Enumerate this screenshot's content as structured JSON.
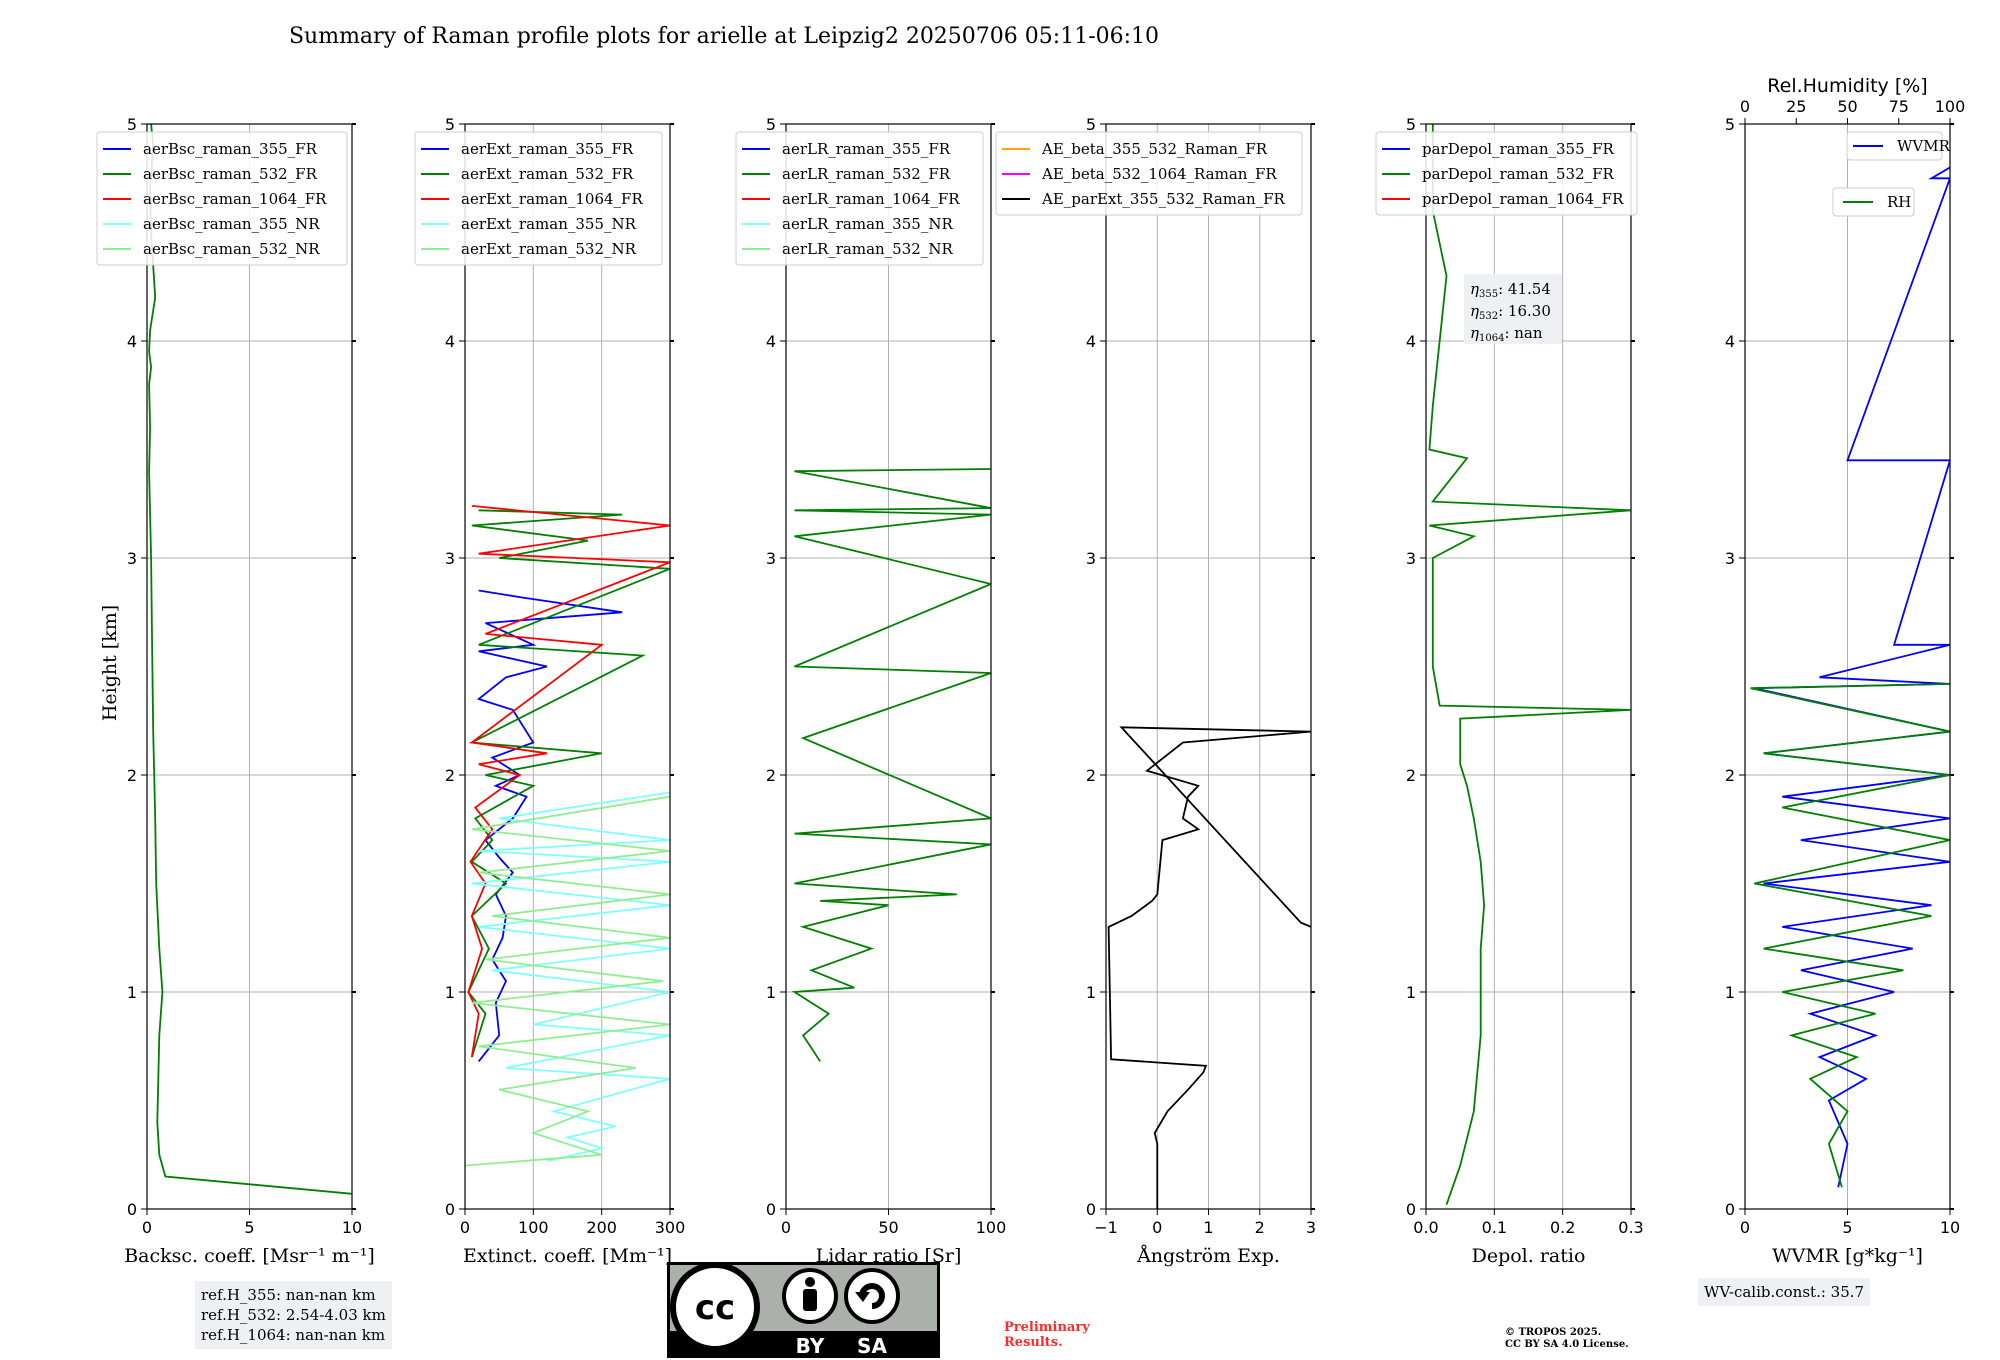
{
  "title": "Summary of Raman profile plots for arielle at Leipzig2 20250706 05:11-06:10",
  "colors": {
    "blue": "#0000ff",
    "green": "#008000",
    "red": "#ff0000",
    "cyan": "#7fffff",
    "lightgreen": "#90ee90",
    "orange": "#ffa500",
    "magenta": "#ff00ff",
    "black": "#000000"
  },
  "chart_data": [
    {
      "type": "line",
      "ylabel": "Height [km]",
      "xlabel": "Backsc. coeff. [Msr⁻¹ m⁻¹]",
      "xlim": [
        0,
        10
      ],
      "ylim": [
        0,
        5
      ],
      "xticks": [
        "0",
        "5",
        "10"
      ],
      "yticks": [
        "0",
        "1",
        "2",
        "3",
        "4",
        "5"
      ],
      "grid": true,
      "legend": "upper-left",
      "series": [
        {
          "name": "aerBsc_raman_355_FR",
          "color": "#0000ff",
          "x": [],
          "y": []
        },
        {
          "name": "aerBsc_raman_532_FR",
          "color": "#008000",
          "x": [
            10,
            0.9,
            0.6,
            0.5,
            0.6,
            0.75,
            0.6,
            0.45,
            0.4,
            0.3,
            0.25,
            0.2,
            0.1,
            0.15,
            0.1,
            0.2,
            0.1,
            0.15,
            0.4,
            0.2,
            0.15,
            0.3,
            0.2
          ],
          "y": [
            0.07,
            0.15,
            0.25,
            0.4,
            0.8,
            1.0,
            1.2,
            1.5,
            1.8,
            2.2,
            2.6,
            3.0,
            3.4,
            3.6,
            3.8,
            3.88,
            3.95,
            4.05,
            4.2,
            4.5,
            4.7,
            4.9,
            5.0
          ]
        },
        {
          "name": "aerBsc_raman_1064_FR",
          "color": "#ff0000",
          "x": [],
          "y": []
        },
        {
          "name": "aerBsc_raman_355_NR",
          "color": "#7fffff",
          "x": [],
          "y": []
        },
        {
          "name": "aerBsc_raman_532_NR",
          "color": "#90ee90",
          "x": [],
          "y": []
        }
      ]
    },
    {
      "type": "line",
      "xlabel": "Extinct. coeff. [Mm⁻¹]",
      "xlim": [
        0,
        300
      ],
      "ylim": [
        0,
        5
      ],
      "xticks": [
        "0",
        "100",
        "200",
        "300"
      ],
      "yticks": [
        "0",
        "1",
        "2",
        "3",
        "4",
        "5"
      ],
      "grid": true,
      "legend": "upper-left",
      "series": [
        {
          "name": "aerExt_raman_355_FR",
          "color": "#0000ff",
          "x": [
            20,
            50,
            45,
            60,
            40,
            55,
            60,
            45,
            70,
            50,
            30,
            70,
            90,
            45,
            80,
            40,
            100,
            70,
            20,
            60,
            120,
            20,
            100,
            30,
            230,
            80,
            20
          ],
          "y": [
            0.68,
            0.8,
            0.95,
            1.05,
            1.15,
            1.25,
            1.35,
            1.45,
            1.55,
            1.62,
            1.7,
            1.8,
            1.9,
            1.95,
            2.0,
            2.08,
            2.15,
            2.3,
            2.35,
            2.45,
            2.5,
            2.57,
            2.6,
            2.7,
            2.75,
            2.82,
            2.85
          ]
        },
        {
          "name": "aerExt_raman_532_FR",
          "color": "#008000",
          "x": [
            10,
            30,
            5,
            35,
            10,
            60,
            10,
            40,
            15,
            100,
            30,
            200,
            10,
            260,
            20,
            300,
            50,
            180,
            10,
            230,
            20
          ],
          "y": [
            0.7,
            0.9,
            1.0,
            1.2,
            1.35,
            1.5,
            1.6,
            1.7,
            1.8,
            1.95,
            2.0,
            2.1,
            2.15,
            2.55,
            2.6,
            2.95,
            3.0,
            3.08,
            3.15,
            3.2,
            3.22
          ]
        },
        {
          "name": "aerExt_raman_1064_FR",
          "color": "#ff0000",
          "x": [
            10,
            20,
            5,
            25,
            10,
            30,
            8,
            40,
            15,
            80,
            20,
            120,
            10,
            200,
            30,
            300,
            20,
            300,
            10
          ],
          "y": [
            0.7,
            0.9,
            1.0,
            1.2,
            1.35,
            1.5,
            1.6,
            1.75,
            1.85,
            2.0,
            2.05,
            2.1,
            2.15,
            2.6,
            2.65,
            2.98,
            3.02,
            3.15,
            3.24
          ]
        },
        {
          "name": "aerExt_raman_355_NR",
          "color": "#7fffff",
          "x": [
            120,
            200,
            150,
            220,
            130,
            300,
            60,
            300,
            100,
            300,
            40,
            300,
            20,
            300,
            10,
            300,
            20,
            300,
            50,
            300
          ],
          "y": [
            0.22,
            0.28,
            0.33,
            0.38,
            0.45,
            0.6,
            0.65,
            0.8,
            0.85,
            1.0,
            1.1,
            1.2,
            1.3,
            1.4,
            1.5,
            1.6,
            1.65,
            1.7,
            1.8,
            1.92
          ]
        },
        {
          "name": "aerExt_raman_532_NR",
          "color": "#90ee90",
          "x": [
            0,
            200,
            100,
            180,
            50,
            250,
            20,
            300,
            10,
            290,
            30,
            300,
            40,
            300,
            20,
            300,
            10,
            300
          ],
          "y": [
            0.2,
            0.25,
            0.35,
            0.45,
            0.55,
            0.65,
            0.75,
            0.85,
            0.95,
            1.05,
            1.15,
            1.25,
            1.35,
            1.45,
            1.55,
            1.65,
            1.75,
            1.9
          ]
        }
      ]
    },
    {
      "type": "line",
      "xlabel": "Lidar ratio [Sr]",
      "xlim": [
        0,
        120
      ],
      "ylim": [
        0,
        5
      ],
      "xticks": [
        "0",
        "50",
        "100"
      ],
      "yticks": [
        "0",
        "1",
        "2",
        "3",
        "4",
        "5"
      ],
      "grid": true,
      "legend": "upper-left",
      "series": [
        {
          "name": "aerLR_raman_355_FR",
          "color": "#0000ff",
          "x": [],
          "y": []
        },
        {
          "name": "aerLR_raman_532_FR",
          "color": "#008000",
          "x": [
            20,
            10,
            25,
            5,
            40,
            15,
            50,
            10,
            60,
            20,
            100,
            5,
            120,
            5,
            120,
            10,
            120,
            5,
            120,
            5,
            120,
            5,
            120,
            5,
            120
          ],
          "y": [
            0.68,
            0.8,
            0.9,
            1.0,
            1.02,
            1.1,
            1.2,
            1.3,
            1.4,
            1.42,
            1.45,
            1.5,
            1.68,
            1.73,
            1.8,
            2.17,
            2.47,
            2.5,
            2.88,
            3.1,
            3.2,
            3.22,
            3.23,
            3.4,
            3.41
          ]
        },
        {
          "name": "aerLR_raman_1064_FR",
          "color": "#ff0000",
          "x": [],
          "y": []
        },
        {
          "name": "aerLR_raman_355_NR",
          "color": "#7fffff",
          "x": [],
          "y": []
        },
        {
          "name": "aerLR_raman_532_NR",
          "color": "#90ee90",
          "x": [],
          "y": []
        }
      ]
    },
    {
      "type": "line",
      "xlabel": "Ångström Exp.",
      "xlim": [
        -1,
        3
      ],
      "ylim": [
        0,
        5
      ],
      "xticks": [
        "−1",
        "0",
        "1",
        "2",
        "3"
      ],
      "yticks": [
        "0",
        "1",
        "2",
        "3",
        "4",
        "5"
      ],
      "grid": true,
      "legend": "upper-left",
      "series": [
        {
          "name": "AE_beta_355_532_Raman_FR",
          "color": "#ffa500",
          "x": [],
          "y": []
        },
        {
          "name": "AE_beta_532_1064_Raman_FR",
          "color": "#ff00ff",
          "x": [],
          "y": []
        },
        {
          "name": "AE_parExt_355_532_Raman_FR",
          "color": "#000000",
          "x": [
            0,
            0,
            -0.05,
            0.2,
            0.6,
            0.9,
            0.95,
            -0.9,
            -0.95,
            -0.5,
            -0.1,
            0.0,
            0.1,
            0.8,
            0.5,
            0.6,
            0.8,
            -0.2,
            0.5,
            3.0,
            -0.7,
            2.8,
            3.0
          ],
          "y": [
            0.0,
            0.3,
            0.35,
            0.45,
            0.55,
            0.63,
            0.66,
            0.69,
            1.3,
            1.35,
            1.42,
            1.45,
            1.7,
            1.75,
            1.8,
            1.9,
            1.95,
            2.02,
            2.15,
            2.2,
            2.22,
            1.32,
            1.3
          ]
        }
      ]
    },
    {
      "type": "line",
      "xlabel": "Depol. ratio",
      "xlim": [
        0,
        0.3
      ],
      "ylim": [
        0,
        5
      ],
      "xticks": [
        "0.0",
        "0.1",
        "0.2",
        "0.3"
      ],
      "yticks": [
        "0",
        "1",
        "2",
        "3",
        "4",
        "5"
      ],
      "grid": true,
      "legend": "upper-left",
      "annotation": {
        "eta355": "41.54",
        "eta532": "16.30",
        "eta1064": "nan"
      },
      "series": [
        {
          "name": "parDepol_raman_355_FR",
          "color": "#0000ff",
          "x": [],
          "y": []
        },
        {
          "name": "parDepol_raman_532_FR",
          "color": "#008000",
          "x": [
            0.03,
            0.05,
            0.07,
            0.08,
            0.08,
            0.08,
            0.085,
            0.08,
            0.07,
            0.06,
            0.05,
            0.05,
            0.05,
            0.3,
            0.02,
            0.01,
            0.01,
            0.07,
            0.005,
            0.3,
            0.01,
            0.06,
            0.005,
            0.01,
            0.03,
            0.01,
            0.01
          ],
          "y": [
            0.02,
            0.2,
            0.45,
            0.8,
            1.0,
            1.2,
            1.4,
            1.6,
            1.8,
            1.95,
            2.05,
            2.18,
            2.26,
            2.3,
            2.32,
            2.5,
            3.0,
            3.1,
            3.15,
            3.22,
            3.26,
            3.46,
            3.5,
            3.7,
            4.3,
            4.6,
            5.0
          ]
        },
        {
          "name": "parDepol_raman_1064_FR",
          "color": "#ff0000",
          "x": [],
          "y": []
        }
      ]
    },
    {
      "type": "line",
      "xlabel": "WVMR [g*kg⁻¹]",
      "xlabel2": "Rel.Humidity [%]",
      "xlim": [
        0,
        11
      ],
      "ylim": [
        0,
        5
      ],
      "xlim2": [
        0,
        100
      ],
      "xticks": [
        "0",
        "5",
        "10"
      ],
      "xticks2": [
        "0",
        "25",
        "50",
        "75",
        "100"
      ],
      "yticks": [
        "0",
        "1",
        "2",
        "3",
        "4",
        "5"
      ],
      "grid": true,
      "legend": "upper-right",
      "series": [
        {
          "name": "WVMR",
          "color": "#0000ff",
          "x": [
            5,
            5.5,
            4.5,
            6.5,
            4,
            7,
            3.5,
            8,
            3,
            9,
            2,
            10,
            1,
            11,
            3,
            11,
            2,
            11,
            1,
            11,
            0.5,
            11,
            4,
            11,
            8,
            11,
            5.5,
            11,
            10,
            11
          ],
          "y": [
            0.1,
            0.3,
            0.5,
            0.6,
            0.7,
            0.8,
            0.9,
            1.0,
            1.1,
            1.2,
            1.3,
            1.4,
            1.5,
            1.6,
            1.7,
            1.8,
            1.9,
            2.0,
            2.1,
            2.2,
            2.4,
            2.42,
            2.45,
            2.6,
            2.6,
            3.45,
            3.45,
            4.75,
            4.75,
            4.8
          ]
        },
        {
          "name": "RH",
          "color": "#008000",
          "x": [
            5.2,
            4.5,
            5.5,
            3.5,
            6,
            2.5,
            7,
            2,
            8.5,
            1,
            10,
            0.5,
            11,
            2,
            11,
            1,
            11,
            0.3,
            11
          ],
          "y": [
            0.1,
            0.3,
            0.45,
            0.6,
            0.7,
            0.8,
            0.9,
            1.0,
            1.1,
            1.2,
            1.35,
            1.5,
            1.7,
            1.85,
            2.0,
            2.1,
            2.2,
            2.4,
            2.42
          ]
        }
      ]
    }
  ],
  "notes": {
    "refH": [
      "ref.H_355: nan-nan km",
      "ref.H_532: 2.54-4.03 km",
      "ref.H_1064: nan-nan km"
    ],
    "wv_calib": "WV-calib.const.: 35.7",
    "prelim": [
      "Preliminary",
      "Results."
    ],
    "copyright": [
      "© TROPOS 2025.",
      "CC BY SA 4.0 License."
    ],
    "badge": {
      "cc": "cc",
      "by": "BY",
      "sa": "SA"
    }
  }
}
